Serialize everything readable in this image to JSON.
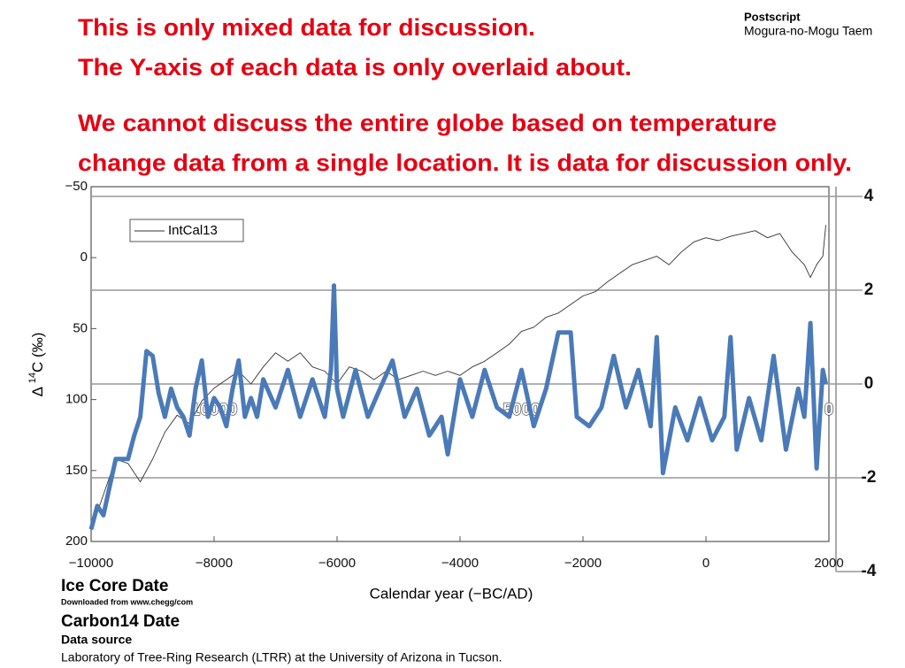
{
  "chart_data": {
    "type": "line",
    "headline": [
      "This is only mixed data for discussion.",
      "The Y-axis of each data is only overlaid about.",
      "We cannot discuss the entire globe based on temperature",
      "change data from a single location. It is data for discussion only."
    ],
    "postscript": {
      "title": "Postscript",
      "author": "Mogura-no-Mogu Taem"
    },
    "xlabel": "Calendar year (−BC/AD)",
    "ylabel": {
      "symbol": "Δ",
      "superscript": "14",
      "unit": "C (‰)"
    },
    "xlim": [
      -10000,
      2000
    ],
    "xticks": [
      {
        "value": -10000,
        "label": "−10000"
      },
      {
        "value": -8000,
        "label": "−8000"
      },
      {
        "value": -6000,
        "label": "−6000"
      },
      {
        "value": -4000,
        "label": "−4000"
      },
      {
        "value": -2000,
        "label": "−2000"
      },
      0,
      2000
    ],
    "x2lim": [
      12000,
      0
    ],
    "x2ticks": [
      10000,
      5000,
      0
    ],
    "ylim": [
      200,
      -50
    ],
    "yticks": [
      {
        "value": -50,
        "label": "−50"
      },
      0,
      50,
      100,
      150,
      200
    ],
    "y2lim": [
      -4,
      4
    ],
    "y2ticks": [
      4,
      2,
      0,
      -2,
      -4
    ],
    "series": [
      {
        "name": "IntCal13",
        "color": "#333333",
        "axis": "y",
        "x": [
          -10000,
          -9800,
          -9600,
          -9400,
          -9200,
          -9000,
          -8800,
          -8600,
          -8400,
          -8200,
          -8000,
          -7800,
          -7600,
          -7400,
          -7200,
          -7000,
          -6800,
          -6600,
          -6400,
          -6200,
          -6000,
          -5800,
          -5600,
          -5400,
          -5200,
          -5000,
          -4800,
          -4600,
          -4400,
          -4200,
          -4000,
          -3800,
          -3600,
          -3400,
          -3200,
          -3000,
          -2800,
          -2600,
          -2400,
          -2200,
          -2000,
          -1800,
          -1600,
          -1400,
          -1200,
          -1000,
          -800,
          -600,
          -400,
          -200,
          0,
          200,
          400,
          600,
          800,
          1000,
          1200,
          1400,
          1600,
          1700,
          1800,
          1900,
          1950
        ],
        "values": [
          192,
          167,
          142,
          145,
          158,
          142,
          123,
          111,
          117,
          101,
          92,
          86,
          80,
          89,
          77,
          67,
          73,
          67,
          77,
          80,
          89,
          77,
          80,
          86,
          80,
          86,
          83,
          80,
          83,
          80,
          83,
          77,
          73,
          67,
          61,
          52,
          49,
          42,
          39,
          33,
          27,
          24,
          17,
          11,
          5,
          2,
          -1,
          5,
          -4,
          -11,
          -14,
          -12,
          -15,
          -17,
          -19,
          -14,
          -17,
          -4,
          5,
          14,
          5,
          -1,
          -23
        ]
      },
      {
        "color": "#4a7ab8",
        "axis": "y2",
        "x": [
          -10000,
          -9900,
          -9800,
          -9700,
          -9600,
          -9400,
          -9300,
          -9200,
          -9100,
          -9000,
          -8900,
          -8800,
          -8700,
          -8600,
          -8500,
          -8400,
          -8300,
          -8200,
          -8100,
          -8000,
          -7900,
          -7800,
          -7700,
          -7600,
          -7500,
          -7400,
          -7300,
          -7200,
          -7000,
          -6800,
          -6600,
          -6400,
          -6200,
          -6100,
          -6050,
          -6000,
          -5900,
          -5700,
          -5500,
          -5300,
          -5100,
          -4900,
          -4700,
          -4500,
          -4300,
          -4200,
          -4000,
          -3800,
          -3600,
          -3400,
          -3200,
          -3000,
          -2800,
          -2600,
          -2400,
          -2200,
          -2100,
          -1900,
          -1700,
          -1500,
          -1300,
          -1100,
          -900,
          -800,
          -700,
          -500,
          -300,
          -100,
          100,
          300,
          400,
          500,
          700,
          900,
          1100,
          1300,
          1500,
          1600,
          1700,
          1800,
          1900,
          1950
        ],
        "values": [
          -3.1,
          -2.6,
          -2.8,
          -2.2,
          -1.6,
          -1.6,
          -1.1,
          -0.7,
          0.7,
          0.6,
          -0.2,
          -0.7,
          -0.1,
          -0.5,
          -0.7,
          -1.1,
          -0.1,
          0.5,
          -0.7,
          -0.3,
          -0.5,
          -0.9,
          -0.1,
          0.5,
          -0.7,
          -0.3,
          -0.7,
          0.1,
          -0.5,
          0.3,
          -0.7,
          0.1,
          -0.7,
          0.3,
          2.1,
          -0.1,
          -0.7,
          0.3,
          -0.7,
          -0.1,
          0.5,
          -0.7,
          -0.1,
          -1.1,
          -0.7,
          -1.5,
          0.1,
          -0.7,
          0.3,
          -0.5,
          -0.7,
          0.3,
          -0.9,
          -0.1,
          1.1,
          1.1,
          -0.7,
          -0.9,
          -0.5,
          0.6,
          -0.5,
          0.3,
          -0.9,
          1.0,
          -1.9,
          -0.5,
          -1.2,
          -0.3,
          -1.2,
          -0.7,
          1.0,
          -1.4,
          -0.3,
          -1.2,
          0.6,
          -1.4,
          -0.1,
          -0.7,
          1.3,
          -1.8,
          0.3,
          0.0
        ]
      }
    ],
    "notes": [
      "Ice Core Date",
      "Downloaded from www.chegg/com",
      "Carbon14 Date",
      "Data source",
      "Laboratory of Tree-Ring Research (LTRR) at the University of Arizona in Tucson."
    ]
  }
}
